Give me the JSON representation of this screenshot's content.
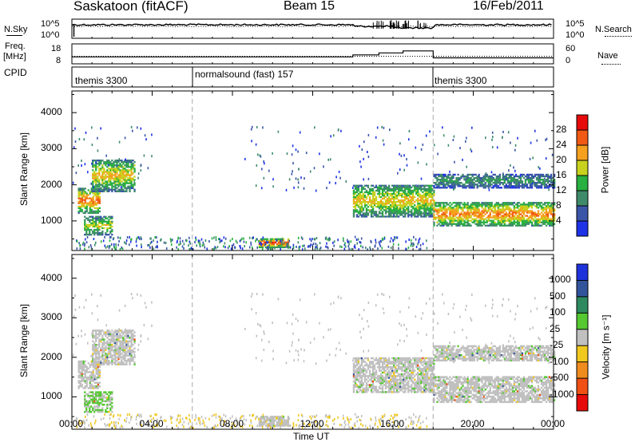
{
  "header": {
    "station": "Saskatoon (fitACF)",
    "beam": "Beam 15",
    "date": "16/Feb/2011"
  },
  "noise_panel": {
    "left_label": "N.Sky",
    "left_ticks": [
      "10^5",
      "10^0"
    ],
    "right_label": "N.Search",
    "right_ticks": [
      "10^5",
      "10^0"
    ]
  },
  "freq_panel": {
    "left_label_1": "Freq.",
    "left_label_2": "[MHz]",
    "left_ticks": [
      "18",
      "8"
    ],
    "right_label": "Nave",
    "right_ticks": [
      "60",
      "0"
    ]
  },
  "cpid_panel": {
    "label": "CPID",
    "segments": [
      {
        "name": "themis 3300",
        "start": 0,
        "end": 6
      },
      {
        "name": "normalsound (fast) 157",
        "start": 6,
        "end": 18
      },
      {
        "name": "themis 3300",
        "start": 18,
        "end": 24
      }
    ]
  },
  "x_axis": {
    "label": "Time UT",
    "ticks": [
      "00:00",
      "04:00",
      "08:00",
      "12:00",
      "16:00",
      "20:00",
      "00:00"
    ],
    "range_hours": [
      0,
      24
    ]
  },
  "y_axis": {
    "label": "Slant Range [km]",
    "ticks": [
      "1000",
      "2000",
      "3000",
      "4000"
    ],
    "range_km": [
      180,
      4600
    ]
  },
  "power_scale": {
    "label": "Power [dB]",
    "ticks": [
      "4",
      "8",
      "12",
      "16",
      "20",
      "24",
      "28"
    ],
    "colors": [
      "#1e32e6",
      "#3a55a8",
      "#3e8a6a",
      "#28b040",
      "#c8d21e",
      "#f5a01e",
      "#f05a14",
      "#e60a0a"
    ]
  },
  "velocity_scale": {
    "label": "Velocity [m s⁻¹]",
    "ticks": [
      "1000",
      "500",
      "100",
      "25",
      "-25",
      "-100",
      "-500",
      "-1000"
    ],
    "colors": [
      "#1e32dc",
      "#32549c",
      "#2e8a5e",
      "#55c832",
      "#c0c0c0",
      "#f0c81e",
      "#f08c1e",
      "#f05014",
      "#e60a0a"
    ]
  },
  "chart_data": {
    "type": "heatmap",
    "title": "Saskatoon (fitACF) Beam 15 16/Feb/2011",
    "xlabel": "Time UT",
    "ylabel": "Slant Range [km]",
    "xlim": [
      0,
      24
    ],
    "ylim": [
      180,
      4600
    ],
    "mode_change_times_hr": [
      6,
      18
    ],
    "power_echo_regions": [
      {
        "t": [
          0.3,
          1.4
        ],
        "range_km": [
          1200,
          1900
        ],
        "power_db": 22
      },
      {
        "t": [
          0.6,
          2.0
        ],
        "range_km": [
          600,
          1100
        ],
        "power_db": 16
      },
      {
        "t": [
          1.0,
          3.1
        ],
        "range_km": [
          1800,
          2700
        ],
        "power_db": 18
      },
      {
        "t": [
          9.3,
          10.8
        ],
        "range_km": [
          250,
          500
        ],
        "power_db": 26
      },
      {
        "t": [
          14.0,
          18.0
        ],
        "range_km": [
          1100,
          2000
        ],
        "power_db": 18
      },
      {
        "t": [
          18.0,
          24.0
        ],
        "range_km": [
          850,
          1500
        ],
        "power_db": 22
      },
      {
        "t": [
          18.0,
          24.0
        ],
        "range_km": [
          1900,
          2300
        ],
        "power_db": 10
      }
    ],
    "velocity_note": "velocities mostly between -25 and 25 m/s (ground scatter)",
    "noise_sky_approx": "10^4",
    "freq_mhz_approx": [
      [
        0,
        11.5
      ],
      [
        14,
        12.5
      ],
      [
        15.3,
        13.5
      ],
      [
        16.5,
        14.5
      ],
      [
        18,
        11
      ]
    ]
  }
}
